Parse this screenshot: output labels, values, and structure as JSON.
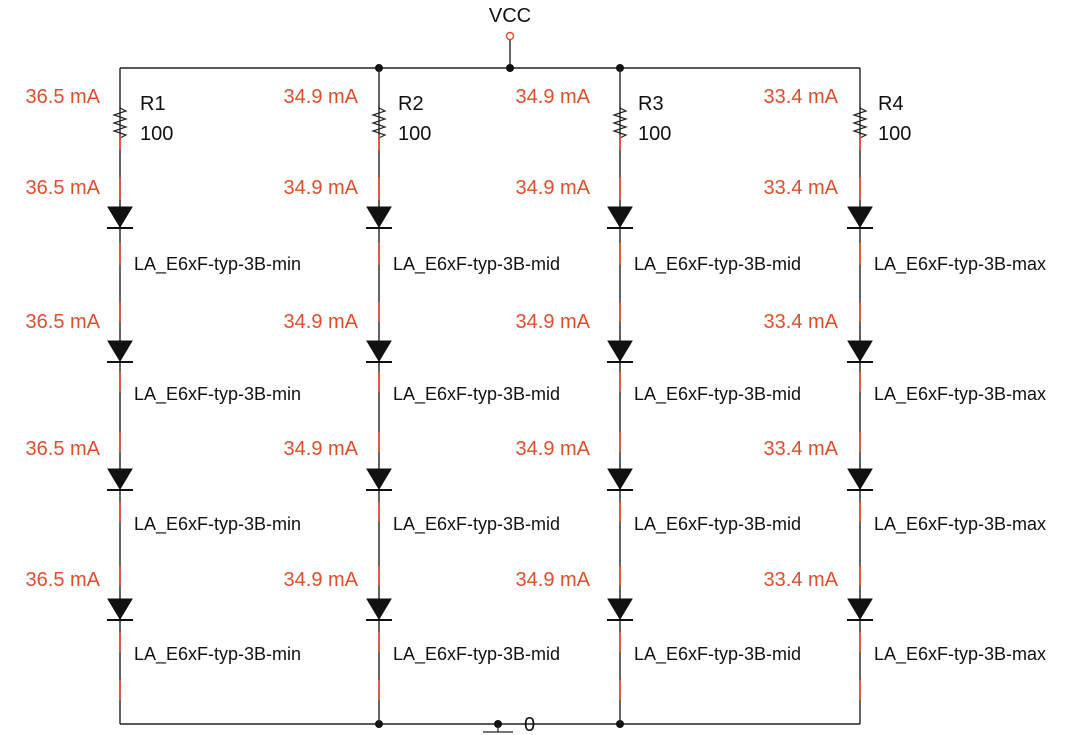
{
  "colors": {
    "wire": "#222222",
    "current": "#e04e2c",
    "text": "#111111",
    "vcc_port": "#e04e2c"
  },
  "vcc_label": "VCC",
  "ground_label": "0",
  "branches": [
    {
      "resistor": {
        "ref": "R1",
        "value": "100"
      },
      "currents": [
        "36.5 mA",
        "36.5 mA",
        "36.5 mA",
        "36.5 mA",
        "36.5 mA"
      ],
      "diodes": [
        "LA_E6xF-typ-3B-min",
        "LA_E6xF-typ-3B-min",
        "LA_E6xF-typ-3B-min",
        "LA_E6xF-typ-3B-min"
      ]
    },
    {
      "resistor": {
        "ref": "R2",
        "value": "100"
      },
      "currents": [
        "34.9 mA",
        "34.9 mA",
        "34.9 mA",
        "34.9 mA",
        "34.9 mA"
      ],
      "diodes": [
        "LA_E6xF-typ-3B-mid",
        "LA_E6xF-typ-3B-mid",
        "LA_E6xF-typ-3B-mid",
        "LA_E6xF-typ-3B-mid"
      ]
    },
    {
      "resistor": {
        "ref": "R3",
        "value": "100"
      },
      "currents": [
        "34.9 mA",
        "34.9 mA",
        "34.9 mA",
        "34.9 mA",
        "34.9 mA"
      ],
      "diodes": [
        "LA_E6xF-typ-3B-mid",
        "LA_E6xF-typ-3B-mid",
        "LA_E6xF-typ-3B-mid",
        "LA_E6xF-typ-3B-mid"
      ]
    },
    {
      "resistor": {
        "ref": "R4",
        "value": "100"
      },
      "currents": [
        "33.4 mA",
        "33.4 mA",
        "33.4 mA",
        "33.4 mA",
        "33.4 mA"
      ],
      "diodes": [
        "LA_E6xF-typ-3B-max",
        "LA_E6xF-typ-3B-max",
        "LA_E6xF-typ-3B-max",
        "LA_E6xF-typ-3B-max"
      ]
    }
  ]
}
